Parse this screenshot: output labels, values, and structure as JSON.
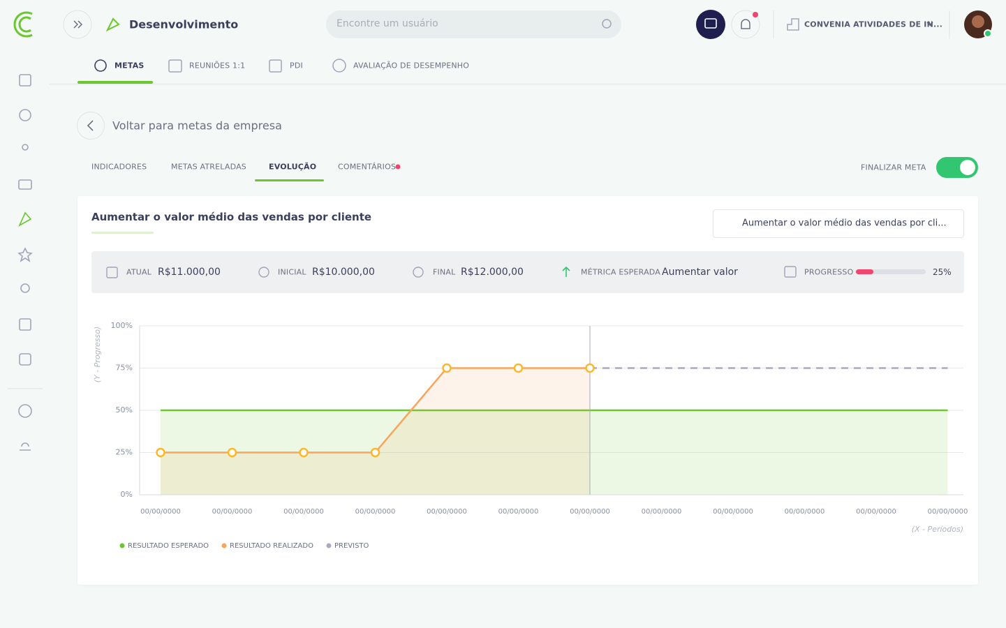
{
  "header": {
    "title": "Desenvolvimento",
    "search_placeholder": "Encontre um usuário",
    "company": "CONVENIA ATIVIDADES DE IN..."
  },
  "tabs": [
    "METAS",
    "REUNIÕES 1:1",
    "PDI",
    "AVALIAÇÃO DE DESEMPENHO"
  ],
  "back_link": "Voltar para metas da empresa",
  "subtabs": [
    "INDICADORES",
    "METAS ATRELADAS",
    "EVOLUÇÃO",
    "COMENTÁRIOS"
  ],
  "finalize": "FINALIZAR META",
  "card": {
    "title": "Aumentar o valor médio das vendas por cliente",
    "select": "Aumentar o valor médio das vendas por cli...",
    "stats": [
      {
        "label": "ATUAL",
        "value": "R$11.000,00"
      },
      {
        "label": "INICIAL",
        "value": "R$10.000,00"
      },
      {
        "label": "FINAL",
        "value": "R$12.000,00"
      },
      {
        "label": "MÉTRICA ESPERADA",
        "value": "Aumentar valor"
      }
    ],
    "progress": {
      "label": "PROGRESSO",
      "value": 25,
      "value_label": "25%",
      "color": "#f2456e"
    }
  },
  "chart_data": {
    "type": "line",
    "y_label": "(Y - Progresso)",
    "x_label": "(X - Períodos)",
    "categories": [
      "00/00/0000",
      "00/00/0000",
      "00/00/0000",
      "00/00/0000",
      "00/00/0000",
      "00/00/0000",
      "00/00/0000",
      "00/00/0000",
      "00/00/0000",
      "00/00/0000",
      "00/00/0000",
      "00/00/0000"
    ],
    "ylim": [
      0,
      100
    ],
    "yticks": [
      {
        "value": 0,
        "label": "0%"
      },
      {
        "value": 25,
        "label": "25%"
      },
      {
        "value": 50,
        "label": "50%"
      },
      {
        "value": 75,
        "label": "75%"
      },
      {
        "value": 100,
        "label": "100%"
      }
    ],
    "grid": true,
    "series": [
      {
        "name": "RESULTADO ESPERADO",
        "color": "#6cc72e",
        "area": true,
        "values": [
          50,
          50,
          50,
          50,
          50,
          50,
          50,
          50,
          50,
          50,
          50,
          50
        ]
      },
      {
        "name": "RESULTADO REALIZADO",
        "color": "#f7a55c",
        "area": true,
        "markers": true,
        "values": [
          25,
          25,
          25,
          25,
          75,
          75,
          75,
          null,
          null,
          null,
          null,
          null
        ]
      },
      {
        "name": "PREVISTO",
        "color": "#a9aabb",
        "dashed": true,
        "values": [
          null,
          null,
          null,
          null,
          null,
          null,
          75,
          75,
          75,
          75,
          75,
          75
        ]
      }
    ]
  }
}
